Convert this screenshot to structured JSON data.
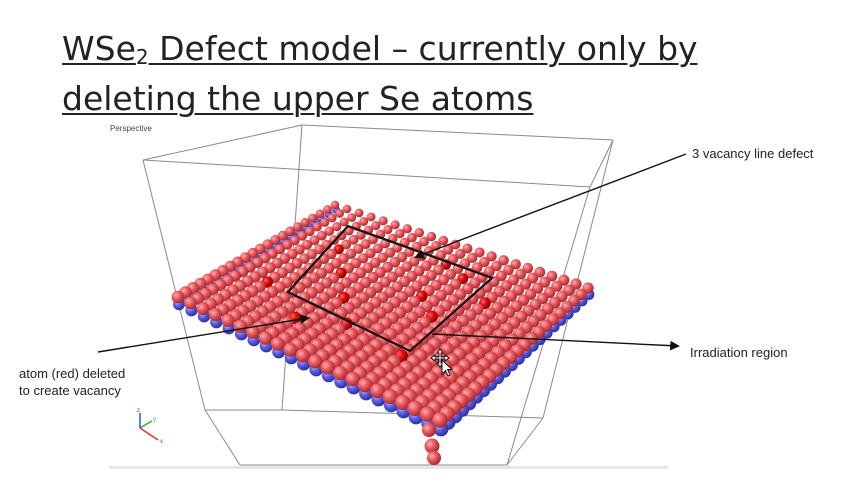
{
  "slide": {
    "title_pre": "WSe",
    "title_sub": "2",
    "title_rest": " Defect model – currently only by",
    "title_line2": "deleting the upper Se atoms"
  },
  "viewport": {
    "label": "Perspective",
    "atom_colors": {
      "se_upper": "#e8545a",
      "se_lower": "#5a5ee0",
      "deleted": "#e00c0c"
    },
    "axis_labels": {
      "x": "x",
      "y": "y",
      "z": "z"
    }
  },
  "annotations": {
    "line_defect": "3 vacancy line defect",
    "irradiation": "Irradiation region",
    "atom_deleted_line1": "atom (red) deleted",
    "atom_deleted_line2": "to create vacancy"
  }
}
